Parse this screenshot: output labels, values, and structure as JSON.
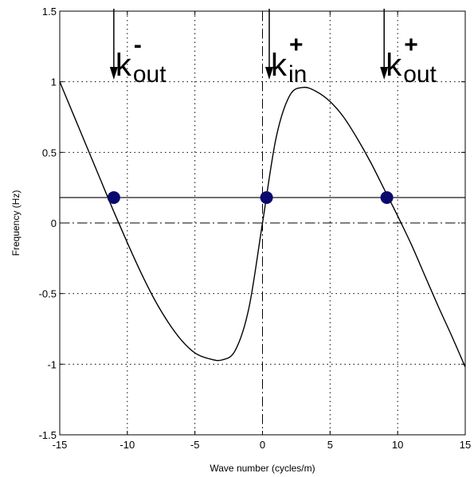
{
  "chart_data": {
    "type": "line",
    "xlabel": "Wave number (cycles/m)",
    "ylabel": "Frequency (Hz)",
    "xlim": [
      -15,
      15
    ],
    "ylim": [
      -1.5,
      1.5
    ],
    "grid": true,
    "xticks": [
      -15,
      -10,
      -5,
      0,
      5,
      10,
      15
    ],
    "yticks": [
      -1.5,
      -1,
      -0.5,
      0,
      0.5,
      1,
      1.5
    ],
    "xtick_labels": [
      "-15",
      "-10",
      "-5",
      "0",
      "5",
      "10",
      "15"
    ],
    "ytick_labels": [
      "-1.5",
      "-1",
      "-0.5",
      "0",
      "0.5",
      "1",
      "1.5"
    ],
    "curve": {
      "x": [
        -15,
        -14,
        -13,
        -12,
        -11,
        -10,
        -9,
        -8,
        -7,
        -6,
        -5,
        -4,
        -3,
        -2,
        -1,
        0,
        1,
        2,
        3,
        4,
        5,
        6,
        7,
        8,
        9,
        10,
        11,
        12,
        13,
        14,
        15
      ],
      "y": [
        1.0,
        0.77,
        0.54,
        0.31,
        0.08,
        -0.14,
        -0.35,
        -0.54,
        -0.7,
        -0.83,
        -0.92,
        -0.96,
        -0.97,
        -0.9,
        -0.6,
        0.0,
        0.6,
        0.9,
        0.96,
        0.93,
        0.86,
        0.75,
        0.6,
        0.43,
        0.24,
        0.05,
        -0.15,
        -0.37,
        -0.59,
        -0.8,
        -1.02
      ]
    },
    "reference_lines": {
      "frequency_level": 0.18,
      "dashdot_horizontal_y": 0,
      "dashdot_vertical_x": 0
    },
    "points": [
      {
        "x": -11,
        "y": 0.18
      },
      {
        "x": 0.3,
        "y": 0.18
      },
      {
        "x": 9.2,
        "y": 0.18
      }
    ],
    "annotations": [
      {
        "x": -11,
        "base": "k",
        "sup": "-",
        "sub": "out"
      },
      {
        "x": 0.5,
        "base": "k",
        "sup": "+",
        "sub": "in"
      },
      {
        "x": 9.0,
        "base": "k",
        "sup": "+",
        "sub": "out"
      }
    ],
    "colors": {
      "marker": "#0a0a6e",
      "line": "#000000",
      "grid": "#000000"
    }
  }
}
